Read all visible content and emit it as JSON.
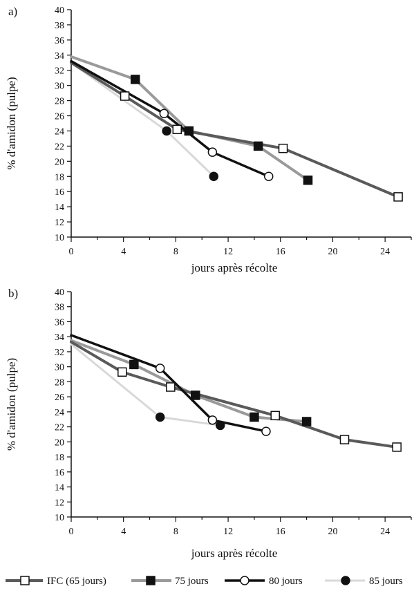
{
  "chart_data": [
    {
      "panel": "a)",
      "type": "line",
      "xlabel": "jours après récolte",
      "ylabel": "% d'amidon (pulpe)",
      "xlim": [
        0,
        26
      ],
      "ylim": [
        10,
        40
      ],
      "xticks": [
        0,
        4,
        8,
        12,
        16,
        20,
        24
      ],
      "yticks": [
        10,
        12,
        14,
        16,
        18,
        20,
        22,
        24,
        26,
        28,
        30,
        32,
        34,
        36,
        38,
        40
      ],
      "series": [
        {
          "name": "IFC (65 jours)",
          "points": [
            [
              0,
              33.0
            ],
            [
              4.1,
              28.6
            ],
            [
              8.1,
              24.2
            ],
            [
              16.2,
              21.7
            ],
            [
              25,
              15.3
            ]
          ]
        },
        {
          "name": "75 jours",
          "points": [
            [
              0,
              33.8
            ],
            [
              4.9,
              30.8
            ],
            [
              9.0,
              24.0
            ],
            [
              14.3,
              22.0
            ],
            [
              18.1,
              17.5
            ]
          ]
        },
        {
          "name": "80 jours",
          "points": [
            [
              0,
              33.2
            ],
            [
              7.1,
              26.3
            ],
            [
              10.8,
              21.2
            ],
            [
              15.1,
              18.0
            ]
          ]
        },
        {
          "name": "85 jours",
          "points": [
            [
              0,
              33.0
            ],
            [
              7.3,
              24.0
            ],
            [
              10.9,
              18.0
            ]
          ]
        }
      ]
    },
    {
      "panel": "b)",
      "type": "line",
      "xlabel": "jours après récolte",
      "ylabel": "% d'amidon (pulpe)",
      "xlim": [
        0,
        26
      ],
      "ylim": [
        10,
        40
      ],
      "xticks": [
        0,
        4,
        8,
        12,
        16,
        20,
        24
      ],
      "yticks": [
        10,
        12,
        14,
        16,
        18,
        20,
        22,
        24,
        26,
        28,
        30,
        32,
        34,
        36,
        38,
        40
      ],
      "series": [
        {
          "name": "IFC (65 jours)",
          "points": [
            [
              0,
              33.3
            ],
            [
              3.9,
              29.3
            ],
            [
              7.6,
              27.3
            ],
            [
              15.6,
              23.5
            ],
            [
              20.9,
              20.3
            ],
            [
              24.9,
              19.3
            ]
          ]
        },
        {
          "name": "75 jours",
          "points": [
            [
              0,
              33.5
            ],
            [
              4.8,
              30.3
            ],
            [
              9.5,
              26.2
            ],
            [
              14.0,
              23.3
            ],
            [
              18.0,
              22.7
            ]
          ]
        },
        {
          "name": "80 jours",
          "points": [
            [
              0,
              34.2
            ],
            [
              6.8,
              29.8
            ],
            [
              10.8,
              22.9
            ],
            [
              14.9,
              21.4
            ]
          ]
        },
        {
          "name": "85 jours",
          "points": [
            [
              0,
              33.0
            ],
            [
              6.8,
              23.3
            ],
            [
              11.4,
              22.2
            ]
          ]
        }
      ]
    }
  ],
  "series_styles": [
    {
      "line_color": "#5a5a5a",
      "line_width": 4,
      "marker": "square",
      "marker_fill": "#ffffff"
    },
    {
      "line_color": "#9a9a9a",
      "line_width": 4,
      "marker": "square",
      "marker_fill": "#111111"
    },
    {
      "line_color": "#111111",
      "line_width": 3.5,
      "marker": "circle",
      "marker_fill": "#ffffff"
    },
    {
      "line_color": "#d8d8d8",
      "line_width": 3,
      "marker": "circle",
      "marker_fill": "#111111"
    }
  ],
  "legend": [
    {
      "label": "IFC (65 jours)"
    },
    {
      "label": "75 jours"
    },
    {
      "label": "80 jours"
    },
    {
      "label": "85 jours"
    }
  ]
}
